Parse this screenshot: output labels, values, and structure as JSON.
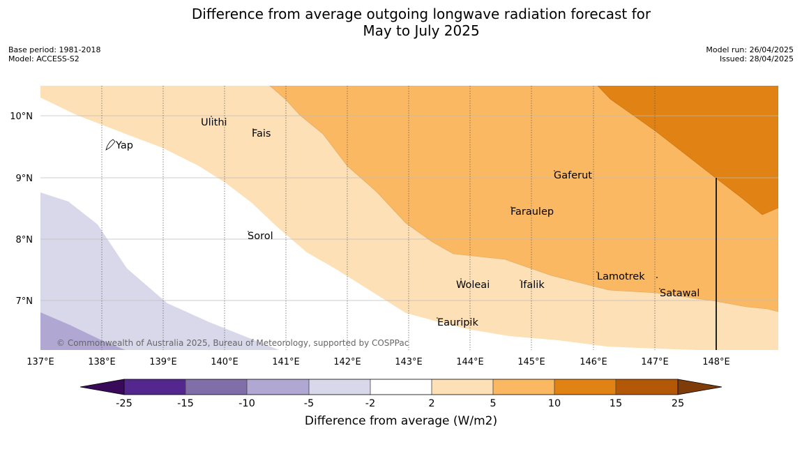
{
  "title_line1": "Difference from average outgoing longwave radiation forecast for",
  "title_line2": "May to July 2025",
  "meta": {
    "base_period": "Base period: 1981-2018",
    "model": "Model: ACCESS-S2",
    "model_run": "Model run: 26/04/2025",
    "issued": "Issued: 28/04/2025"
  },
  "map": {
    "lon_ticks": [
      "137°E",
      "138°E",
      "139°E",
      "140°E",
      "141°E",
      "142°E",
      "143°E",
      "144°E",
      "145°E",
      "146°E",
      "147°E",
      "148°E"
    ],
    "lat_ticks": [
      "10°N",
      "9°N",
      "8°N",
      "7°N"
    ],
    "places": [
      {
        "name": "Ulithi",
        "lon": 139.63,
        "lat": 9.87
      },
      {
        "name": "Fais",
        "lon": 140.52,
        "lat": 9.76
      },
      {
        "name": "Yap",
        "lon": 138.15,
        "lat": 9.53
      },
      {
        "name": "Gaferut",
        "lon": 145.38,
        "lat": 9.23
      },
      {
        "name": "Faraulep",
        "lon": 144.6,
        "lat": 8.6
      },
      {
        "name": "Sorol",
        "lon": 140.39,
        "lat": 8.13
      },
      {
        "name": "Lamotrek",
        "lon": 146.33,
        "lat": 7.5
      },
      {
        "name": "Woleai",
        "lon": 143.91,
        "lat": 7.35
      },
      {
        "name": "Ifalik",
        "lon": 144.45,
        "lat": 7.25
      },
      {
        "name": "Satawal",
        "lon": 147.03,
        "lat": 7.37
      },
      {
        "name": "Eauripik",
        "lon": 143.04,
        "lat": 6.68
      }
    ],
    "copyright": "© Commonwealth of Australia 2025, Bureau of Meteorology, supported by COSPPac"
  },
  "colorbar": {
    "label": "Difference from average (W/m2)",
    "tick_labels": [
      "-25",
      "-15",
      "-10",
      "-5",
      "-2",
      "2",
      "5",
      "10",
      "15",
      "25"
    ],
    "colors": {
      "below": "#3a0a5a",
      "bins": [
        "#54278f",
        "#7f6ea8",
        "#b0a8d2",
        "#d8d8ea",
        "#ffffff",
        "#fde0b5",
        "#fbb862",
        "#e08214",
        "#b35806"
      ],
      "above": "#7f3b08"
    }
  }
}
